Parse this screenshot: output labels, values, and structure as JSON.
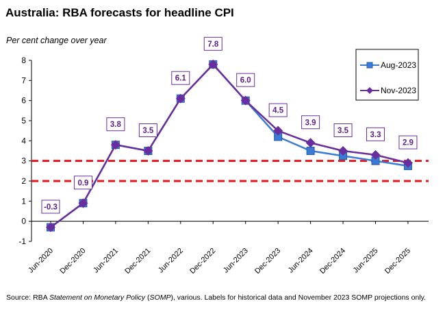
{
  "title": "Australia: RBA forecasts for headline CPI",
  "subtitle": "Per cent change over year",
  "footnote": {
    "part1": "Source: RBA ",
    "italic1": "Statement on Monetary Policy",
    "part2": " (",
    "italic2": "SOMP",
    "part3": "), various.  Labels for historical data and November 2023 SOMP projections only."
  },
  "colors": {
    "aug": "#3a7bd5",
    "aug_marker_stroke": "#2a5ca8",
    "nov": "#6a2d9e",
    "target_band": "#e3171c",
    "label_border": "#6a2d9e",
    "label_text": "#5b1f8a"
  },
  "chart_data": {
    "type": "line",
    "categories": [
      "Jun-2020",
      "Dec-2020",
      "Jun-2021",
      "Dec-2021",
      "Jun-2022",
      "Dec-2022",
      "Jun-2023",
      "Dec-2023",
      "Jun-2024",
      "Dec-2024",
      "Jun-2025",
      "Dec-2025"
    ],
    "ylim": [
      -1,
      8
    ],
    "yticks": [
      -1,
      0,
      1,
      2,
      3,
      4,
      5,
      6,
      7,
      8
    ],
    "grid": false,
    "legend_position": "top-right",
    "reference_lines": [
      2,
      3
    ],
    "series": [
      {
        "name": "Aug-2023",
        "marker": "square",
        "values": [
          -0.3,
          0.9,
          3.8,
          3.5,
          6.1,
          7.8,
          6.0,
          4.2,
          3.5,
          3.25,
          3.0,
          2.75
        ]
      },
      {
        "name": "Nov-2023",
        "marker": "diamond",
        "values": [
          -0.3,
          0.9,
          3.8,
          3.5,
          6.1,
          7.8,
          6.0,
          4.5,
          3.9,
          3.5,
          3.3,
          2.9
        ]
      }
    ],
    "data_labels": [
      "-0.3",
      "0.9",
      "3.8",
      "3.5",
      "6.1",
      "7.8",
      "6.0",
      "4.5",
      "3.9",
      "3.5",
      "3.3",
      "2.9"
    ]
  }
}
